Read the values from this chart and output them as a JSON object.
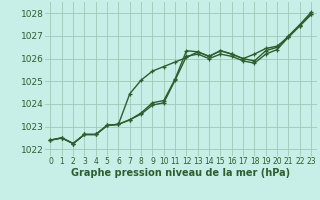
{
  "title": "Graphe pression niveau de la mer (hPa)",
  "bg_color": "#c8eee8",
  "grid_color": "#a0c8b8",
  "line_color": "#2d5e2d",
  "x_values": [
    0,
    1,
    2,
    3,
    4,
    5,
    6,
    7,
    8,
    9,
    10,
    11,
    12,
    13,
    14,
    15,
    16,
    17,
    18,
    19,
    20,
    21,
    22,
    23
  ],
  "line1": [
    1022.4,
    1022.5,
    1022.25,
    1022.65,
    1022.65,
    1023.05,
    1023.1,
    1023.3,
    1023.6,
    1024.05,
    1024.15,
    1025.1,
    1026.35,
    1026.3,
    1026.1,
    1026.35,
    1026.2,
    1026.0,
    1025.9,
    1026.35,
    1026.5,
    1027.0,
    1027.5,
    1028.05
  ],
  "line2": [
    1022.4,
    1022.5,
    1022.25,
    1022.65,
    1022.65,
    1023.05,
    1023.1,
    1024.45,
    1025.05,
    1025.45,
    1025.65,
    1025.85,
    1026.05,
    1026.3,
    1026.1,
    1026.35,
    1026.2,
    1026.0,
    1026.2,
    1026.45,
    1026.55,
    1026.95,
    1027.45,
    1027.95
  ],
  "line3": [
    1022.4,
    1022.5,
    1022.25,
    1022.65,
    1022.65,
    1023.05,
    1023.1,
    1023.3,
    1023.55,
    1023.95,
    1024.05,
    1025.05,
    1026.1,
    1026.2,
    1026.0,
    1026.2,
    1026.1,
    1025.9,
    1025.8,
    1026.2,
    1026.4,
    1026.95,
    1027.45,
    1027.95
  ],
  "ylim": [
    1021.7,
    1028.5
  ],
  "yticks": [
    1022,
    1023,
    1024,
    1025,
    1026,
    1027,
    1028
  ],
  "xlim": [
    -0.5,
    23.5
  ],
  "xticks": [
    0,
    1,
    2,
    3,
    4,
    5,
    6,
    7,
    8,
    9,
    10,
    11,
    12,
    13,
    14,
    15,
    16,
    17,
    18,
    19,
    20,
    21,
    22,
    23
  ],
  "xlabel_fontsize": 7.0,
  "ytick_fontsize": 6.5,
  "xtick_fontsize": 5.5
}
